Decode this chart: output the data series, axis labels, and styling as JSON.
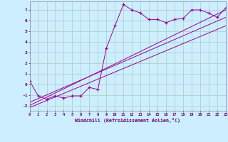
{
  "xlabel": "Windchill (Refroidissement éolien,°C)",
  "bg_color": "#cceeff",
  "line_color": "#990099",
  "grid_color": "#aaccbb",
  "xlim": [
    0,
    23
  ],
  "ylim": [
    -2.5,
    7.8
  ],
  "x_ticks": [
    0,
    1,
    2,
    3,
    4,
    5,
    6,
    7,
    8,
    9,
    10,
    11,
    12,
    13,
    14,
    15,
    16,
    17,
    18,
    19,
    20,
    21,
    22,
    23
  ],
  "y_ticks": [
    -2,
    -1,
    0,
    1,
    2,
    3,
    4,
    5,
    6,
    7
  ],
  "scatter_x": [
    0,
    1,
    2,
    3,
    4,
    5,
    6,
    7,
    8,
    9,
    10,
    11,
    12,
    13,
    14,
    15,
    16,
    17,
    18,
    19,
    20,
    21,
    22,
    23
  ],
  "scatter_y": [
    0.3,
    -1.1,
    -1.4,
    -1.1,
    -1.3,
    -1.1,
    -1.1,
    -0.3,
    -0.5,
    3.4,
    5.5,
    7.5,
    7.0,
    6.7,
    6.1,
    6.1,
    5.8,
    6.1,
    6.2,
    7.0,
    7.0,
    6.7,
    6.3,
    7.2
  ],
  "line1_x": [
    0,
    23
  ],
  "line1_y": [
    -1.7,
    6.3
  ],
  "line2_x": [
    0,
    23
  ],
  "line2_y": [
    -2.0,
    7.0
  ],
  "line3_x": [
    0,
    23
  ],
  "line3_y": [
    -2.2,
    5.5
  ]
}
